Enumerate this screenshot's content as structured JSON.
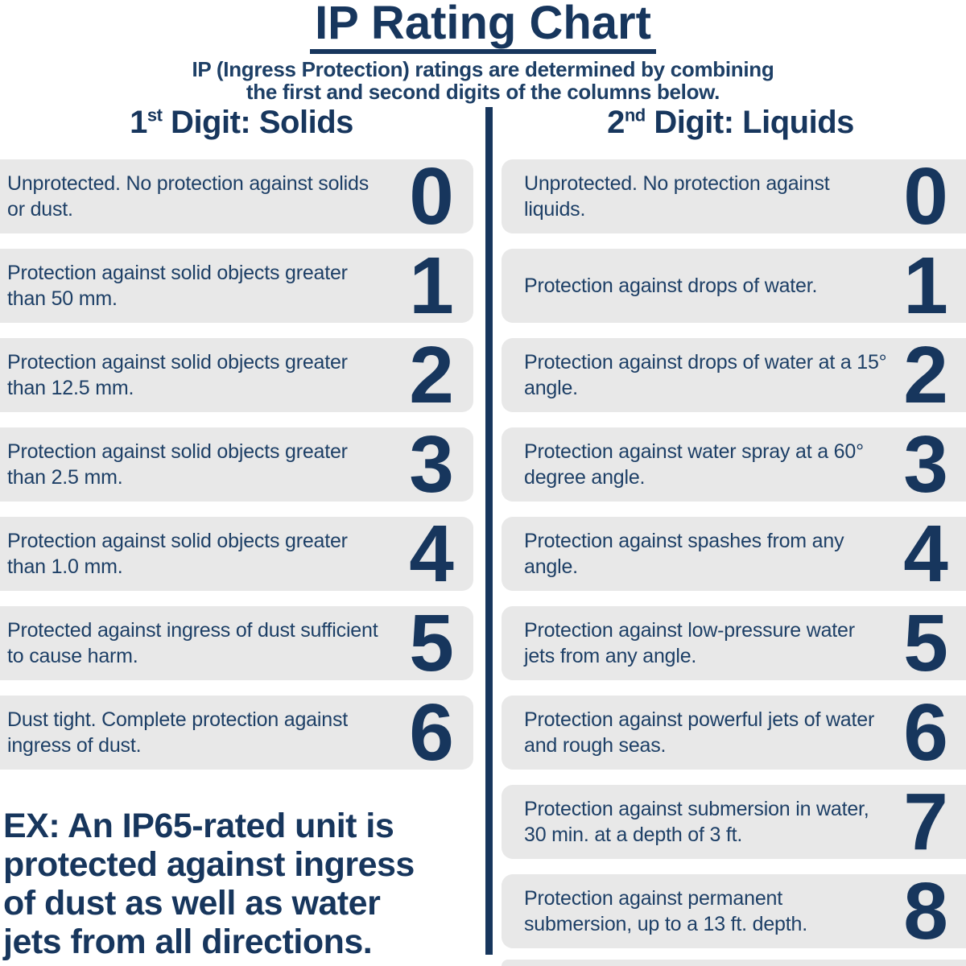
{
  "title": "IP Rating Chart",
  "subtitle": {
    "line1": "IP (Ingress Protection) ratings are determined by combining",
    "line2": "the first and second digits of the columns below."
  },
  "colors": {
    "navy": "#17365d",
    "card_gray": "#e8e8e8",
    "background": "#ffffff"
  },
  "columns": {
    "solids": {
      "heading_number": "1",
      "heading_sup": "st",
      "heading_rest": " Digit: Solids",
      "rows": [
        {
          "digit": "0",
          "description": "Unprotected. No protection against solids or dust."
        },
        {
          "digit": "1",
          "description": "Protection against solid objects greater than 50 mm."
        },
        {
          "digit": "2",
          "description": "Protection against solid objects greater than 12.5 mm."
        },
        {
          "digit": "3",
          "description": "Protection against solid objects greater than 2.5 mm."
        },
        {
          "digit": "4",
          "description": "Protection against solid objects greater than 1.0 mm."
        },
        {
          "digit": "5",
          "description": "Protected against ingress of dust sufficient to cause harm."
        },
        {
          "digit": "6",
          "description": "Dust tight. Complete protection against ingress of dust."
        }
      ]
    },
    "liquids": {
      "heading_number": "2",
      "heading_sup": "nd",
      "heading_rest": " Digit: Liquids",
      "rows": [
        {
          "digit": "0",
          "description": "Unprotected. No protection against liquids."
        },
        {
          "digit": "1",
          "description": "Protection against drops of water."
        },
        {
          "digit": "2",
          "description": "Protection against drops of water at a 15° angle."
        },
        {
          "digit": "3",
          "description": "Protection against water spray at a 60° degree angle."
        },
        {
          "digit": "4",
          "description": "Protection against spashes from any angle."
        },
        {
          "digit": "5",
          "description": "Protection against low-pressure water jets from any angle."
        },
        {
          "digit": "6",
          "description": "Protection against powerful jets of water and rough seas."
        },
        {
          "digit": "7",
          "description": "Protection against submersion in water, 30 min. at a depth of 3 ft."
        },
        {
          "digit": "8",
          "description": "Protection against permanent submersion, up to a 13 ft. depth."
        }
      ]
    }
  },
  "example": {
    "full_text": "EX: An IP65-rated unit is protected against ingress of dust as well as water jets from all directions.",
    "lines": [
      "EX: An IP65-rated unit is",
      "protected against ingress",
      "of dust as well as water",
      "jets from all directions."
    ]
  }
}
